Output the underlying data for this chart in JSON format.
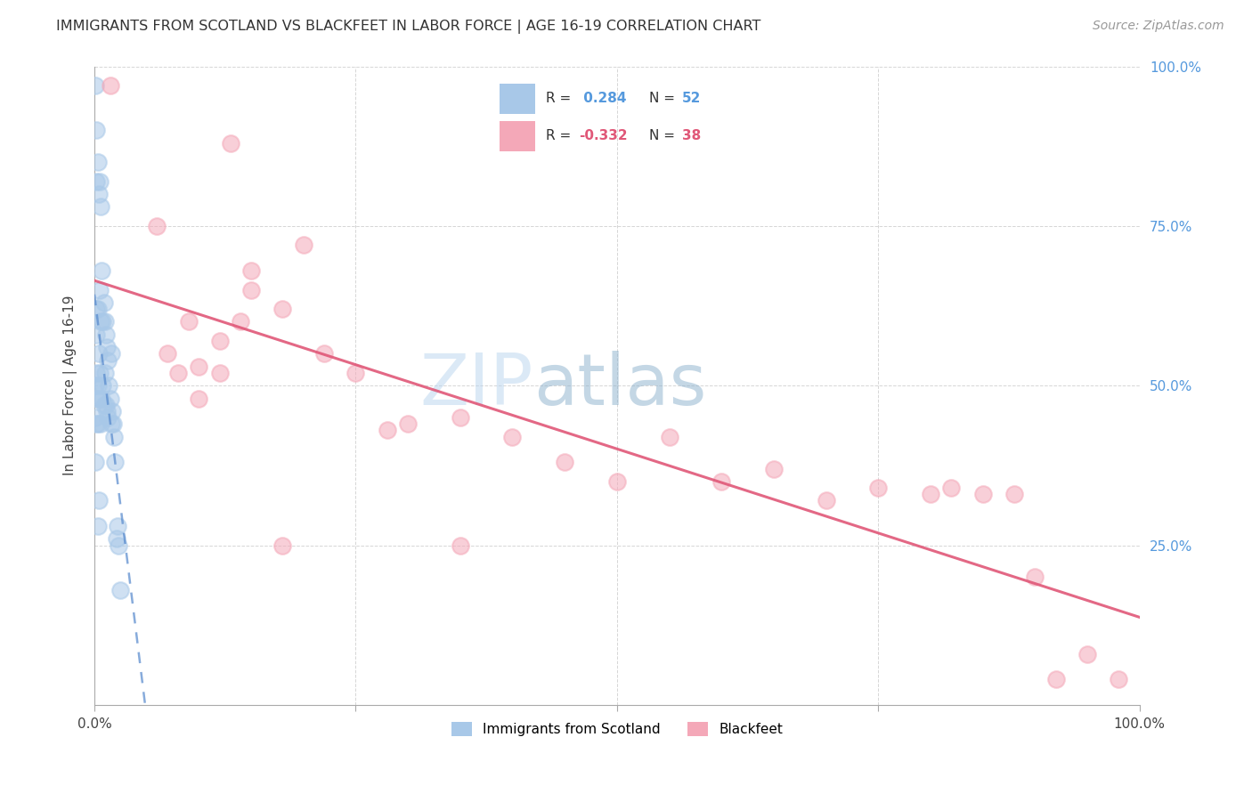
{
  "title": "IMMIGRANTS FROM SCOTLAND VS BLACKFEET IN LABOR FORCE | AGE 16-19 CORRELATION CHART",
  "source": "Source: ZipAtlas.com",
  "ylabel": "In Labor Force | Age 16-19",
  "scotland_R": 0.284,
  "scotland_N": 52,
  "blackfeet_R": -0.332,
  "blackfeet_N": 38,
  "scotland_color": "#a8c8e8",
  "blackfeet_color": "#f4a8b8",
  "scotland_line_color": "#5588cc",
  "blackfeet_line_color": "#e05878",
  "watermark_zip": "ZIP",
  "watermark_atlas": "atlas",
  "scotland_points_x": [
    0.001,
    0.001,
    0.001,
    0.001,
    0.002,
    0.002,
    0.002,
    0.002,
    0.002,
    0.002,
    0.002,
    0.003,
    0.003,
    0.003,
    0.003,
    0.003,
    0.004,
    0.004,
    0.004,
    0.005,
    0.005,
    0.005,
    0.005,
    0.006,
    0.006,
    0.006,
    0.007,
    0.007,
    0.008,
    0.008,
    0.009,
    0.009,
    0.01,
    0.01,
    0.011,
    0.011,
    0.012,
    0.012,
    0.013,
    0.013,
    0.014,
    0.015,
    0.016,
    0.016,
    0.017,
    0.018,
    0.019,
    0.02,
    0.021,
    0.022,
    0.023,
    0.025
  ],
  "scotland_points_y": [
    0.97,
    0.5,
    0.45,
    0.38,
    0.9,
    0.82,
    0.62,
    0.58,
    0.52,
    0.48,
    0.44,
    0.85,
    0.62,
    0.5,
    0.44,
    0.28,
    0.8,
    0.55,
    0.32,
    0.82,
    0.65,
    0.52,
    0.48,
    0.78,
    0.6,
    0.44,
    0.68,
    0.48,
    0.6,
    0.5,
    0.63,
    0.47,
    0.6,
    0.52,
    0.58,
    0.47,
    0.56,
    0.46,
    0.54,
    0.45,
    0.5,
    0.48,
    0.55,
    0.44,
    0.46,
    0.44,
    0.42,
    0.38,
    0.26,
    0.28,
    0.25,
    0.18
  ],
  "blackfeet_points_x": [
    0.015,
    0.13,
    0.15,
    0.15,
    0.18,
    0.2,
    0.06,
    0.07,
    0.08,
    0.09,
    0.1,
    0.1,
    0.12,
    0.12,
    0.14,
    0.22,
    0.25,
    0.28,
    0.3,
    0.35,
    0.4,
    0.45,
    0.5,
    0.55,
    0.6,
    0.65,
    0.7,
    0.75,
    0.8,
    0.82,
    0.85,
    0.88,
    0.9,
    0.92,
    0.95,
    0.98,
    0.18,
    0.35
  ],
  "blackfeet_points_y": [
    0.97,
    0.88,
    0.65,
    0.68,
    0.62,
    0.72,
    0.75,
    0.55,
    0.52,
    0.6,
    0.53,
    0.48,
    0.57,
    0.52,
    0.6,
    0.55,
    0.52,
    0.43,
    0.44,
    0.45,
    0.42,
    0.38,
    0.35,
    0.42,
    0.35,
    0.37,
    0.32,
    0.34,
    0.33,
    0.34,
    0.33,
    0.33,
    0.2,
    0.04,
    0.08,
    0.04,
    0.25,
    0.25
  ]
}
